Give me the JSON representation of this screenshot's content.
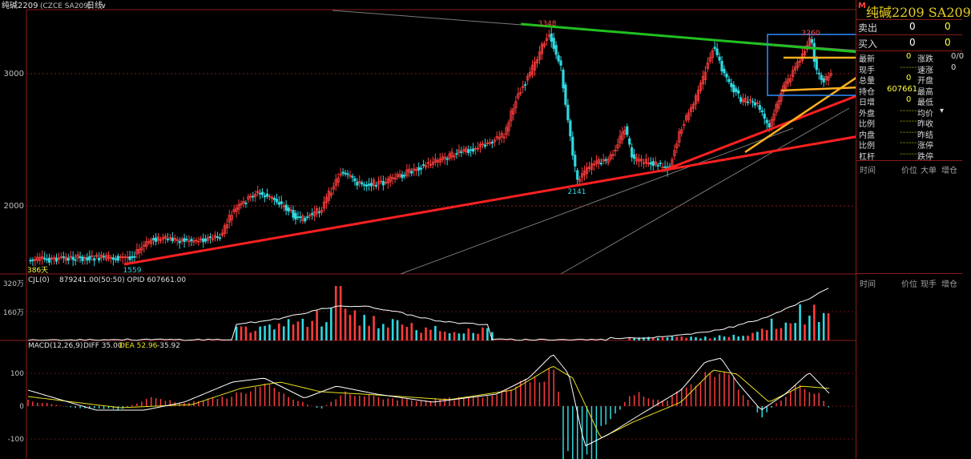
{
  "header": {
    "title": "纯碱2209",
    "contract": "(CZCE SA209)",
    "period": "日线",
    "dropdown_glyph": "∨"
  },
  "price_axis": {
    "labels": [
      "3000",
      "2000"
    ]
  },
  "annotations": {
    "high_main": "3348",
    "low_main": "2141",
    "high_recent": "3260",
    "low_start": "1559",
    "days_left": "386天"
  },
  "volume_panel": {
    "legend": "CJL(0)",
    "legend_values": "879241.00(50:50)  OPID 607661.00",
    "axis_labels": [
      "320万",
      "160万"
    ]
  },
  "macd_panel": {
    "legend": "MACD(12,26,9)",
    "diff": "DIFF 35.00",
    "dea": "DEA 52.96",
    "macd": "-35.92",
    "axis_labels": [
      "100",
      "0",
      "-100"
    ]
  },
  "colors": {
    "up": "#ff3c3c",
    "down": "#30d8e0",
    "green_line": "#20c020",
    "red_line": "#ff2020",
    "orange_line": "#ffb020",
    "box": "#2f8cff",
    "macd_diff": "#ffffff",
    "macd_dea": "#e8e020"
  },
  "quote_panel": {
    "title": "纯碱2209  SA209",
    "m_badge": "M",
    "sell_label": "卖出",
    "sell_price": "0",
    "sell_vol": "0",
    "buy_label": "买入",
    "buy_price": "0",
    "buy_vol": "0",
    "rows": [
      {
        "l1": "最新",
        "v1": "0",
        "l2": "涨跌",
        "v2": "0/0"
      },
      {
        "l1": "现手",
        "v1": "------",
        "l2": "速涨",
        "v2": "0"
      },
      {
        "l1": "总量",
        "v1": "0",
        "l2": "开盘",
        "v2": ""
      },
      {
        "l1": "持仓",
        "v1": "607661",
        "l2": "最高",
        "v2": ""
      },
      {
        "l1": "日增",
        "v1": "0",
        "l2": "最低",
        "v2": ""
      },
      {
        "l1": "外盘",
        "v1": "------",
        "l2": "均价",
        "v2": ""
      },
      {
        "l1": "比例",
        "v1": "------",
        "l2": "昨收",
        "v2": ""
      },
      {
        "l1": "内盘",
        "v1": "------",
        "l2": "昨结",
        "v2": ""
      },
      {
        "l1": "比例",
        "v1": "------",
        "l2": "涨停",
        "v2": ""
      },
      {
        "l1": "杠杆",
        "v1": "------",
        "l2": "跌停",
        "v2": ""
      }
    ],
    "avg_dropdown": "▾",
    "tick_header": [
      "时间",
      "价位",
      "大单",
      "增仓"
    ],
    "tick_header2": [
      "时间",
      "价位",
      "现手",
      "增仓"
    ]
  }
}
